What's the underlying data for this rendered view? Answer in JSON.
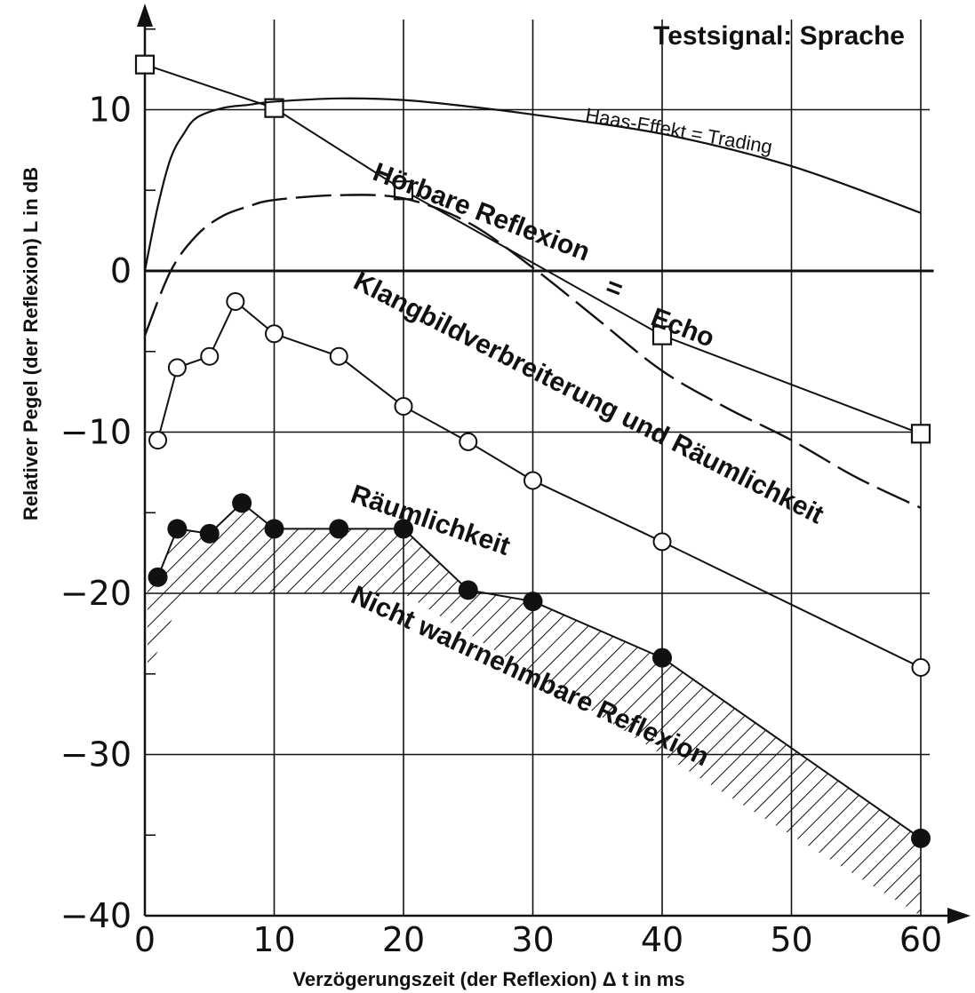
{
  "chart_data": {
    "type": "line",
    "title": "Testsignal: Sprache",
    "xlabel": "Verzögerungszeit (der Reflexion) Δ t in ms",
    "ylabel": "Relativer Pegel (der Reflexion) L in dB",
    "xlim": [
      0,
      62
    ],
    "ylim": [
      -40,
      15
    ],
    "xticks": [
      0,
      10,
      20,
      30,
      40,
      50,
      60
    ],
    "yticks": [
      -40,
      -30,
      -20,
      -10,
      0,
      10
    ],
    "xtick_labels": [
      "0",
      "10",
      "20",
      "30",
      "40",
      "50",
      "60"
    ],
    "ytick_labels": [
      "-40",
      "-30",
      "-20",
      "-10",
      "0",
      "10"
    ],
    "grid": true,
    "series": [
      {
        "style": "squares",
        "x": [
          0,
          10,
          20,
          40,
          60
        ],
        "y": [
          12.8,
          10.1,
          5.0,
          -4.0,
          -10.1
        ]
      },
      {
        "style": "open-circles",
        "x": [
          1,
          2.5,
          5,
          7,
          10,
          15,
          20,
          25,
          30,
          40,
          60
        ],
        "y": [
          -10.5,
          -6,
          -5.3,
          -1.9,
          -3.9,
          -5.3,
          -8.4,
          -10.6,
          -13,
          -16.8,
          -24.6
        ]
      },
      {
        "style": "filled-circles",
        "x": [
          1,
          2.5,
          5,
          7.5,
          10,
          15,
          20,
          25,
          30,
          40,
          60
        ],
        "y": [
          -19,
          -16,
          -16.3,
          -14.4,
          -16,
          -16,
          -16,
          -19.8,
          -20.5,
          -24,
          -35.2
        ]
      },
      {
        "style": "solid-curve",
        "x": [
          0,
          1,
          2,
          3,
          4,
          6,
          8,
          10,
          15,
          20,
          25,
          30,
          40,
          50,
          60
        ],
        "y": [
          0,
          4,
          7,
          8.5,
          9.5,
          10.1,
          10.3,
          10.5,
          10.7,
          10.6,
          10.2,
          9.7,
          8.5,
          6.5,
          3.6
        ]
      },
      {
        "style": "dashed-curve",
        "x": [
          0,
          2,
          4,
          6,
          8,
          10,
          15,
          20,
          25,
          30,
          35,
          40,
          45,
          50,
          55,
          60
        ],
        "y": [
          -4,
          0,
          2.2,
          3.4,
          4,
          4.4,
          4.7,
          4.5,
          3,
          0.2,
          -3,
          -6.2,
          -8.5,
          -10.5,
          -12.8,
          -14.7
        ]
      },
      {
        "style": "zero-line",
        "x": [
          0,
          61
        ],
        "y": [
          0,
          0
        ]
      }
    ],
    "hatched_region": {
      "upper": {
        "x": [
          0.2,
          1,
          2.5,
          5,
          7.5,
          10,
          15,
          20,
          25,
          30,
          40,
          60
        ],
        "y": [
          -19.5,
          -19,
          -16,
          -16.3,
          -14.4,
          -16,
          -16,
          -16,
          -19.8,
          -20.5,
          -24,
          -35.2
        ]
      },
      "lower": {
        "x": [
          0.2,
          3,
          20,
          60
        ],
        "y": [
          -25,
          -20,
          -20,
          -43
        ]
      }
    },
    "annotations": [
      {
        "text": "Haas-Effekt = Trading",
        "x": 34,
        "y": 9.3,
        "angle": 10
      },
      {
        "text": "Hörbare Reflexion",
        "x": 17.5,
        "y": 5.7,
        "angle": 21
      },
      {
        "text": "=",
        "x": 35.5,
        "y": -1.4,
        "angle": 21
      },
      {
        "text": "Echo",
        "x": 39,
        "y": -3.3,
        "angle": 21
      },
      {
        "text": "Klangbildverbreiterung und Räumlichkeit",
        "x": 16,
        "y": -1,
        "angle": 27
      },
      {
        "text": "Räumlichkeit",
        "x": 15.8,
        "y": -14.3,
        "angle": 19
      },
      {
        "text": "Nicht wahrnehmbare Reflexion",
        "x": 15.8,
        "y": -20.5,
        "angle": 25
      }
    ]
  }
}
